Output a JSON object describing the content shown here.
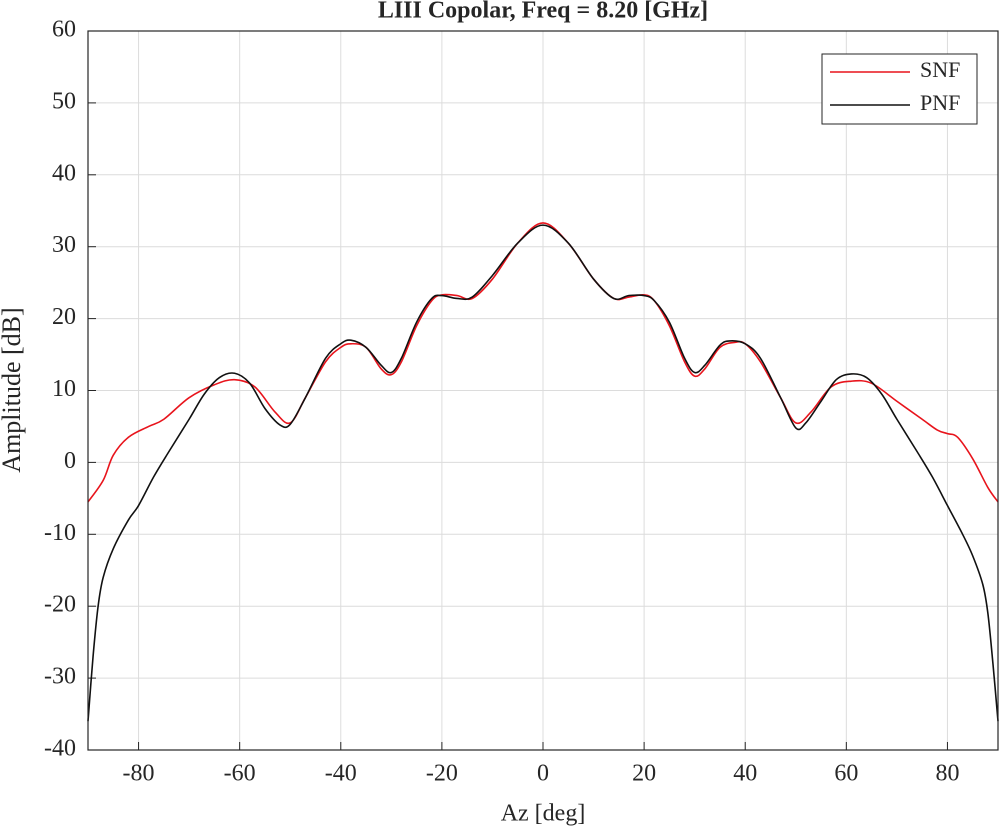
{
  "chart_data": {
    "type": "line",
    "title": "LIII Copolar, Freq = 8.20 [GHz]",
    "x_label": "Az [deg]",
    "y_label": "Amplitude [dB]",
    "xlim": [
      -90,
      90
    ],
    "ylim": [
      -40,
      60
    ],
    "xticks": [
      -80,
      -60,
      -40,
      -20,
      0,
      20,
      40,
      60,
      80
    ],
    "yticks": [
      -40,
      -30,
      -20,
      -10,
      0,
      10,
      20,
      30,
      40,
      50,
      60
    ],
    "grid": true,
    "legend": "upper right",
    "series": [
      {
        "name": "SNF",
        "color": "#e8141c",
        "x": [
          -90,
          -87,
          -85,
          -82,
          -78,
          -75,
          -70,
          -65,
          -61,
          -57,
          -53,
          -50,
          -47,
          -43,
          -40,
          -38,
          -35,
          -32,
          -30,
          -28,
          -25,
          -22,
          -20,
          -17,
          -14,
          -10,
          -5,
          0,
          5,
          10,
          14,
          17,
          20,
          22,
          25,
          28,
          30,
          32,
          35,
          38,
          40,
          43,
          47,
          50,
          53,
          57,
          61,
          65,
          70,
          75,
          78,
          80,
          82,
          85,
          88,
          90
        ],
        "values": [
          -5.5,
          -2.5,
          1,
          3.5,
          5,
          6,
          9,
          10.8,
          11.5,
          10.5,
          7,
          5.5,
          9,
          14,
          16,
          16.5,
          16,
          13,
          12.2,
          14,
          19,
          22.5,
          23.3,
          23.2,
          22.8,
          25.5,
          30.5,
          33.3,
          30.5,
          25.5,
          22.8,
          23,
          23.3,
          22.5,
          19,
          14,
          12,
          13,
          16,
          16.7,
          16.5,
          14,
          9,
          5.5,
          7,
          10.5,
          11.3,
          11,
          8.5,
          6,
          4.5,
          4,
          3.5,
          0.5,
          -3.5,
          -5.5
        ]
      },
      {
        "name": "PNF",
        "color": "#111111",
        "x": [
          -90,
          -89,
          -88,
          -87,
          -85,
          -82,
          -80,
          -77,
          -74,
          -70,
          -67,
          -64,
          -61,
          -58,
          -55,
          -52,
          -50,
          -47,
          -43,
          -40,
          -38,
          -35,
          -32,
          -30,
          -28,
          -25,
          -22,
          -20,
          -17,
          -14,
          -10,
          -5,
          0,
          5,
          10,
          14,
          17,
          20,
          22,
          25,
          28,
          30,
          32,
          35,
          37,
          40,
          43,
          47,
          50,
          52,
          55,
          58,
          61,
          64,
          67,
          70,
          74,
          77,
          80,
          83,
          85,
          87,
          88,
          89,
          90
        ],
        "values": [
          -36,
          -27,
          -20,
          -16,
          -12,
          -8,
          -6,
          -2,
          1.5,
          6,
          9.5,
          11.8,
          12.4,
          11,
          7.5,
          5.2,
          5.3,
          9,
          14.5,
          16.5,
          17,
          16,
          13.5,
          12.5,
          14.5,
          19.5,
          22.8,
          23.2,
          22.8,
          23,
          26,
          30.5,
          33,
          30.5,
          25.5,
          22.8,
          23.2,
          23.2,
          22.5,
          19.5,
          14.5,
          12.5,
          13.5,
          16.3,
          16.9,
          16.5,
          14.5,
          9,
          4.8,
          5.5,
          8.5,
          11.5,
          12.3,
          11.8,
          9.5,
          6,
          1.5,
          -2,
          -6,
          -10,
          -13,
          -17,
          -21,
          -28,
          -36
        ]
      }
    ]
  }
}
